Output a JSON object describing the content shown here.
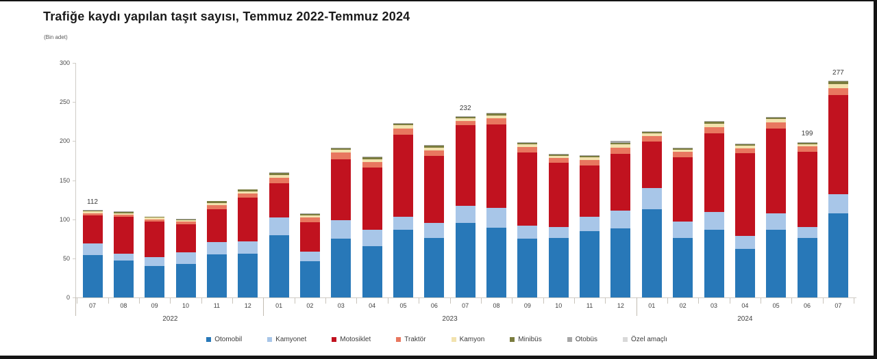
{
  "title": "Trafiğe kaydı yapılan taşıt sayısı, Temmuz 2022-Temmuz 2024",
  "subtitle": "(Bin adet)",
  "chart_data": {
    "type": "bar",
    "stacked": true,
    "title": "Trafiğe kaydı yapılan taşıt sayısı, Temmuz 2022-Temmuz 2024",
    "unit_note": "(Bin adet)",
    "ylim": [
      0,
      300
    ],
    "yticks": [
      0,
      50,
      100,
      150,
      200,
      250,
      300
    ],
    "grid": false,
    "legend_position": "bottom",
    "categories": [
      "07",
      "08",
      "09",
      "10",
      "11",
      "12",
      "01",
      "02",
      "03",
      "04",
      "05",
      "06",
      "07",
      "08",
      "09",
      "10",
      "11",
      "12",
      "01",
      "02",
      "03",
      "04",
      "05",
      "06",
      "07"
    ],
    "year_groups": [
      {
        "label": "2022",
        "span": 6
      },
      {
        "label": "2023",
        "span": 12
      },
      {
        "label": "2024",
        "span": 7
      }
    ],
    "series": [
      {
        "name": "Otomobil",
        "color": "#2878b8",
        "values": [
          54,
          47,
          40,
          43,
          55,
          56,
          80,
          46,
          75,
          66,
          87,
          76,
          95,
          89,
          75,
          76,
          85,
          88,
          113,
          76,
          87,
          62,
          87,
          76,
          108
        ]
      },
      {
        "name": "Kamyonet",
        "color": "#a8c6e8",
        "values": [
          15,
          9,
          12,
          15,
          16,
          16,
          22,
          13,
          24,
          21,
          16,
          19,
          22,
          26,
          17,
          14,
          18,
          23,
          27,
          21,
          22,
          17,
          21,
          14,
          24
        ]
      },
      {
        "name": "Motosiklet",
        "color": "#c1121f",
        "values": [
          36,
          47,
          45,
          36,
          42,
          56,
          44,
          37,
          78,
          79,
          105,
          86,
          103,
          106,
          93,
          82,
          66,
          73,
          59,
          82,
          101,
          106,
          108,
          96,
          127
        ]
      },
      {
        "name": "Traktör",
        "color": "#e8775f",
        "values": [
          3,
          3,
          3,
          3,
          5,
          5,
          7,
          6,
          8,
          7,
          8,
          7,
          6,
          8,
          7,
          6,
          7,
          8,
          7,
          7,
          8,
          6,
          8,
          7,
          9
        ]
      },
      {
        "name": "Kamyon",
        "color": "#f2e2ae",
        "values": [
          2,
          2,
          2,
          2,
          3,
          3,
          4,
          3,
          4,
          4,
          4,
          4,
          3,
          4,
          4,
          3,
          3,
          4,
          4,
          3,
          4,
          3,
          4,
          3,
          5
        ]
      },
      {
        "name": "Minibüs",
        "color": "#7a7c3e",
        "values": [
          1,
          1,
          1,
          1,
          2,
          2,
          2,
          2,
          2,
          2,
          2,
          2,
          2,
          2,
          2,
          2,
          2,
          2,
          2,
          2,
          3,
          2,
          2,
          2,
          3
        ]
      },
      {
        "name": "Otobüs",
        "color": "#a6a6a6",
        "values": [
          1,
          1,
          0,
          1,
          0,
          0,
          1,
          1,
          1,
          1,
          1,
          1,
          1,
          1,
          1,
          1,
          1,
          2,
          1,
          1,
          1,
          1,
          1,
          1,
          1
        ]
      },
      {
        "name": "Özel amaçlı",
        "color": "#d9d9d9",
        "values": [
          0,
          0,
          0,
          0,
          0,
          0,
          0,
          0,
          0,
          0,
          0,
          0,
          0,
          0,
          0,
          0,
          0,
          0,
          0,
          0,
          0,
          0,
          0,
          0,
          0
        ]
      }
    ],
    "totals": [
      112,
      110,
      103,
      101,
      123,
      138,
      160,
      108,
      192,
      180,
      223,
      195,
      232,
      236,
      199,
      184,
      182,
      200,
      213,
      192,
      226,
      197,
      231,
      199,
      277
    ],
    "bar_labels": {
      "0": "112",
      "12": "232",
      "23": "199",
      "24": "277"
    }
  }
}
